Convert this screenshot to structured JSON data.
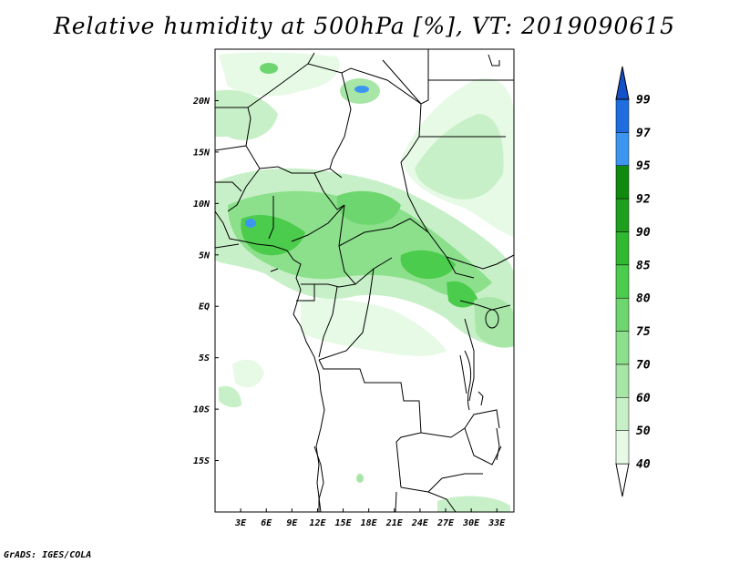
{
  "title": "Relative humidity at 500hPa [%], VT: 2019090615",
  "credit": "GrADS: IGES/COLA",
  "map": {
    "lon_range": [
      0,
      35
    ],
    "lat_range": [
      -20,
      25
    ],
    "lat_labels": [
      "20N",
      "15N",
      "10N",
      "5N",
      "EQ",
      "5S",
      "10S",
      "15S"
    ],
    "lat_values": [
      20,
      15,
      10,
      5,
      0,
      -5,
      -10,
      -15
    ],
    "lon_labels": [
      "3E",
      "6E",
      "9E",
      "12E",
      "15E",
      "18E",
      "21E",
      "24E",
      "27E",
      "30E",
      "33E"
    ],
    "lon_values": [
      3,
      6,
      9,
      12,
      15,
      18,
      21,
      24,
      27,
      30,
      33
    ]
  },
  "colorbar": {
    "levels": [
      "40",
      "50",
      "60",
      "70",
      "75",
      "80",
      "85",
      "90",
      "92",
      "95",
      "97",
      "99"
    ],
    "colors": [
      "#ffffff",
      "#e6fae6",
      "#c8f0c8",
      "#a8e6a8",
      "#8ce08c",
      "#6ed66e",
      "#4ccc4c",
      "#30b830",
      "#1ea01e",
      "#0f8a0f",
      "#3c96f0",
      "#1e6ee0",
      "#1450c8"
    ]
  }
}
